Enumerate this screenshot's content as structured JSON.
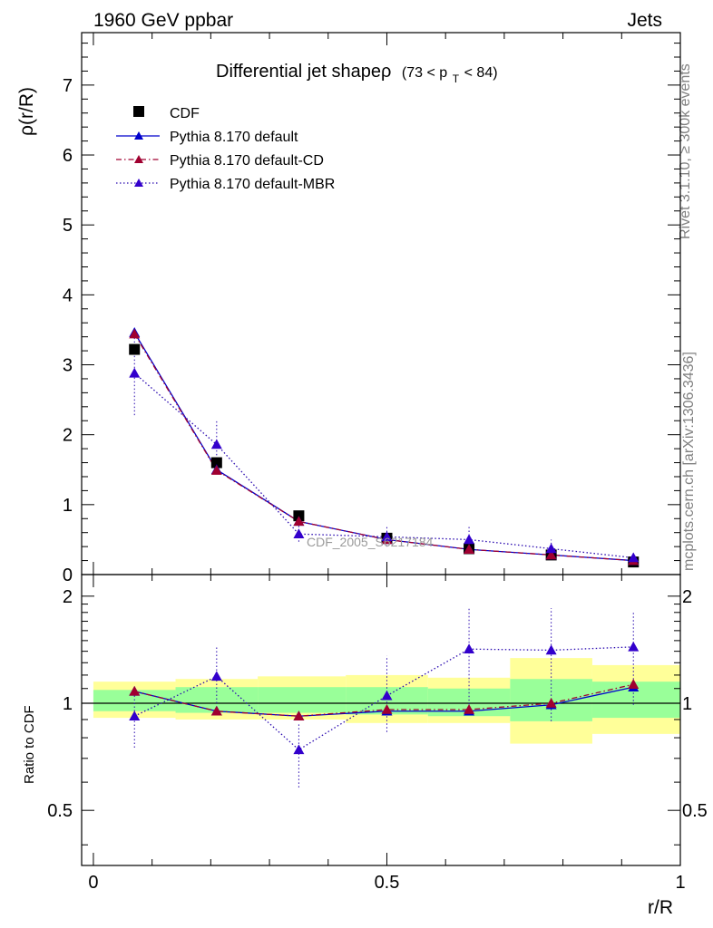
{
  "header": {
    "left": "1960 GeV ppbar",
    "right": "Jets"
  },
  "side_labels": {
    "rivet": "Rivet 3.1.10, ≥ 300k events",
    "mcplots": "mcplots.cern.ch [arXiv:1306.3436]"
  },
  "chart_data": [
    {
      "type": "scatter",
      "title": "Differential jet shapeρ",
      "title_suffix": "(73 < p",
      "title_sub": "T",
      "title_end": " < 84)",
      "ylabel": "ρ(r/R)",
      "watermark": "CDF_2005_S6217184",
      "xlim": [
        -0.02,
        1.0
      ],
      "ylim": [
        0,
        7.75
      ],
      "yticks": [
        0,
        1,
        2,
        3,
        4,
        5,
        6,
        7
      ],
      "ytick_labels": [
        "0",
        "1",
        "2",
        "3",
        "4",
        "5",
        "6",
        "7"
      ],
      "x": [
        0.07,
        0.21,
        0.35,
        0.5,
        0.64,
        0.78,
        0.92
      ],
      "series": [
        {
          "name": "CDF",
          "style": "data",
          "color": "#000000",
          "values": [
            3.22,
            1.6,
            0.84,
            0.52,
            0.37,
            0.28,
            0.18
          ]
        },
        {
          "name": "Pythia 8.170 default",
          "style": "solid",
          "color": "#0000cc",
          "marker_color": "#0000cc",
          "values": [
            3.46,
            1.5,
            0.76,
            0.5,
            0.36,
            0.28,
            0.2
          ]
        },
        {
          "name": "Pythia 8.170 default-CD",
          "style": "dashdot",
          "color": "#a00030",
          "marker_color": "#a00030",
          "values": [
            3.44,
            1.49,
            0.76,
            0.5,
            0.36,
            0.28,
            0.2
          ]
        },
        {
          "name": "Pythia 8.170 default-MBR",
          "style": "dotted",
          "color": "#2a0ab0",
          "marker_color": "#3300cc",
          "values": [
            2.88,
            1.86,
            0.58,
            0.54,
            0.5,
            0.37,
            0.24
          ],
          "err_low": [
            2.28,
            1.55,
            0.47,
            0.4,
            0.35,
            0.28,
            0.2
          ],
          "err_high": [
            3.47,
            2.22,
            0.7,
            0.68,
            0.7,
            0.5,
            0.31
          ]
        }
      ]
    },
    {
      "type": "scatter",
      "ylabel": "Ratio to CDF",
      "xlabel": "r/R",
      "xlim": [
        -0.02,
        1.0
      ],
      "ylim": [
        0.35,
        2.3
      ],
      "yscale": "log",
      "yticks": [
        0.5,
        1,
        2
      ],
      "ytick_labels": [
        "0.5",
        "1",
        "2"
      ],
      "xticks": [
        0,
        0.5,
        1
      ],
      "xtick_labels": [
        "0",
        "0.5",
        "1"
      ],
      "reference_line": 1,
      "bands": {
        "edges": [
          0.0,
          0.14,
          0.28,
          0.43,
          0.57,
          0.71,
          0.85,
          1.0
        ],
        "yellow_low": [
          0.91,
          0.9,
          0.9,
          0.88,
          0.88,
          0.77,
          0.82
        ],
        "yellow_high": [
          1.15,
          1.17,
          1.19,
          1.2,
          1.18,
          1.34,
          1.28
        ],
        "green_low": [
          0.95,
          0.94,
          0.94,
          0.93,
          0.92,
          0.89,
          0.91
        ],
        "green_high": [
          1.09,
          1.11,
          1.11,
          1.11,
          1.1,
          1.17,
          1.15
        ]
      },
      "x": [
        0.07,
        0.21,
        0.35,
        0.5,
        0.64,
        0.78,
        0.92
      ],
      "series": [
        {
          "name": "Pythia 8.170 default",
          "style": "solid",
          "color": "#0000cc",
          "marker_color": "#0000cc",
          "values": [
            1.08,
            0.95,
            0.92,
            0.95,
            0.95,
            0.99,
            1.11
          ]
        },
        {
          "name": "Pythia 8.170 default-CD",
          "style": "dashdot",
          "color": "#a00030",
          "marker_color": "#a00030",
          "values": [
            1.08,
            0.95,
            0.92,
            0.96,
            0.96,
            1.0,
            1.13
          ]
        },
        {
          "name": "Pythia 8.170 default-MBR",
          "style": "dotted",
          "color": "#2a0ab0",
          "marker_color": "#3300cc",
          "values": [
            0.92,
            1.19,
            0.74,
            1.05,
            1.42,
            1.41,
            1.44
          ],
          "err_low": [
            0.75,
            1.0,
            0.58,
            0.83,
            0.97,
            0.89,
            0.99
          ],
          "err_high": [
            1.09,
            1.45,
            0.88,
            1.36,
            1.86,
            1.85,
            1.81
          ]
        }
      ]
    }
  ]
}
